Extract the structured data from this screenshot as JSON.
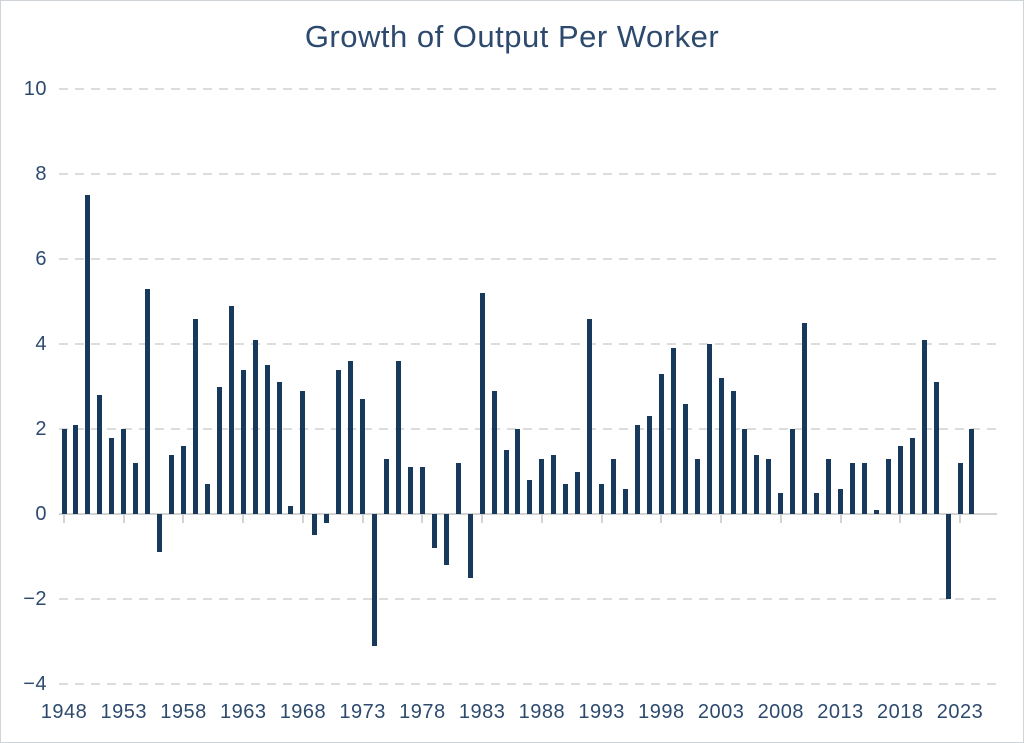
{
  "page": {
    "title": "Growth of Output Per Worker"
  },
  "colors": {
    "bar": "#17395c",
    "title_text": "#2d4a6e",
    "axis_label_text": "#2d4a6e",
    "gridline": "#dcdcdc",
    "baseline": "#d3d3d3",
    "background": "#ffffff"
  },
  "chart_data": {
    "type": "bar",
    "title": "Growth of Output Per Worker",
    "xlabel": "",
    "ylabel": "",
    "start_year": 1948,
    "x": [
      1948,
      1949,
      1950,
      1951,
      1952,
      1953,
      1954,
      1955,
      1956,
      1957,
      1958,
      1959,
      1960,
      1961,
      1962,
      1963,
      1964,
      1965,
      1966,
      1967,
      1968,
      1969,
      1970,
      1971,
      1972,
      1973,
      1974,
      1975,
      1976,
      1977,
      1978,
      1979,
      1980,
      1981,
      1982,
      1983,
      1984,
      1985,
      1986,
      1987,
      1988,
      1989,
      1990,
      1991,
      1992,
      1993,
      1994,
      1995,
      1996,
      1997,
      1998,
      1999,
      2000,
      2001,
      2002,
      2003,
      2004,
      2005,
      2006,
      2007,
      2008,
      2009,
      2010,
      2011,
      2012,
      2013,
      2014,
      2015,
      2016,
      2017,
      2018,
      2019,
      2020,
      2021,
      2022,
      2023,
      2024
    ],
    "values": [
      2.0,
      2.1,
      7.5,
      2.8,
      1.8,
      2.0,
      1.2,
      5.3,
      -0.9,
      1.4,
      1.6,
      4.6,
      0.7,
      3.0,
      4.9,
      3.4,
      4.1,
      3.5,
      3.1,
      0.2,
      2.9,
      -0.5,
      -0.2,
      3.4,
      3.6,
      2.7,
      -3.1,
      1.3,
      3.6,
      1.1,
      1.1,
      -0.8,
      -1.2,
      1.2,
      -1.5,
      5.2,
      2.9,
      1.5,
      2.0,
      0.8,
      1.3,
      1.4,
      0.7,
      1.0,
      4.6,
      0.7,
      1.3,
      0.6,
      2.1,
      2.3,
      3.3,
      3.9,
      2.6,
      1.3,
      4.0,
      3.2,
      2.9,
      2.0,
      1.4,
      1.3,
      0.5,
      2.0,
      4.5,
      0.5,
      1.3,
      0.6,
      1.2,
      1.2,
      0.1,
      1.3,
      1.6,
      1.8,
      4.1,
      3.1,
      -2.0,
      1.2,
      2.0
    ],
    "yticks": [
      10,
      8,
      6,
      4,
      2,
      0,
      -2,
      -4
    ],
    "xtick_labels": [
      "1948",
      "1953",
      "1958",
      "1963",
      "1968",
      "1973",
      "1978",
      "1983",
      "1988",
      "1993",
      "1998",
      "2003",
      "2008",
      "2013",
      "2018",
      "2023"
    ],
    "ylim": [
      -4,
      10
    ],
    "grid": "horizontal-dashed",
    "legend": "none"
  }
}
